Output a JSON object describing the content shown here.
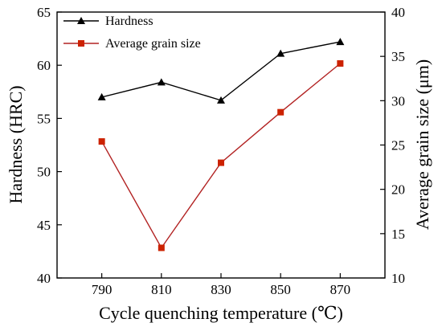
{
  "chart_data": {
    "type": "line",
    "xlabel": "Cycle quenching temperature (℃)",
    "ylabel_left": "Hardness (HRC)",
    "ylabel_right": "Average grain size (μm)",
    "categories": [
      "790",
      "810",
      "830",
      "850",
      "870"
    ],
    "x": [
      790,
      810,
      830,
      850,
      870
    ],
    "xlim": [
      775,
      885
    ],
    "ylim_left": [
      40,
      65
    ],
    "ylim_right": [
      10,
      40
    ],
    "yticks_left": [
      40,
      45,
      50,
      55,
      60,
      65
    ],
    "yticks_right": [
      10,
      15,
      20,
      25,
      30,
      35,
      40
    ],
    "legend_position": "top-left",
    "grid": false,
    "series": [
      {
        "name": "Hardness",
        "axis": "left",
        "marker": "triangle",
        "color": "#000000",
        "marker_color": "#000000",
        "values": [
          57.0,
          58.4,
          56.7,
          61.1,
          62.2
        ]
      },
      {
        "name": "Average grain size",
        "axis": "right",
        "marker": "square",
        "color": "#b22222",
        "marker_color": "#cc2200",
        "values": [
          25.4,
          13.4,
          23.0,
          28.7,
          34.2
        ]
      }
    ]
  }
}
